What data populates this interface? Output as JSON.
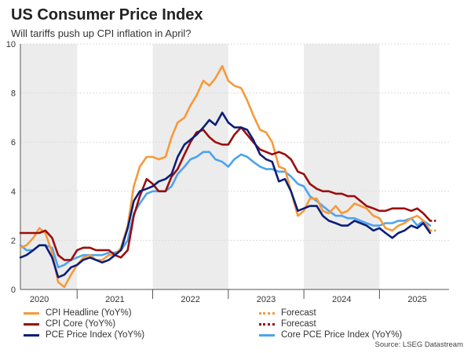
{
  "title": "US Consumer Price Index",
  "subtitle": "Will tariffs push up CPI inflation in April?",
  "source": "Source: LSEG Datastream",
  "colors": {
    "cpi_headline": "#f59a3b",
    "cpi_core": "#9b0d0d",
    "pce": "#0b1e78",
    "core_pce": "#4da3ee",
    "shade": "#ececec",
    "grid": "#dcdcdc",
    "axis": "#555555"
  },
  "legend": [
    {
      "label": "CPI Headline (YoY%)",
      "color": "#f59a3b",
      "style": "solid"
    },
    {
      "label": "Forecast",
      "color": "#f59a3b",
      "style": "dotted"
    },
    {
      "label": "CPI Core (YoY%)",
      "color": "#9b0d0d",
      "style": "solid"
    },
    {
      "label": "Forecast",
      "color": "#9b0d0d",
      "style": "dotted"
    },
    {
      "label": "PCE Price Index (YoY%)",
      "color": "#0b1e78",
      "style": "solid"
    },
    {
      "label": "Core PCE Price Index (YoY%)",
      "color": "#4da3ee",
      "style": "solid"
    }
  ],
  "chart_data": {
    "type": "line",
    "title": "US Consumer Price Index",
    "subtitle": "Will tariffs push up CPI inflation in April?",
    "xlabel": "",
    "ylabel": "",
    "ylim": [
      0,
      10
    ],
    "yticks": [
      0,
      2,
      4,
      6,
      8,
      10
    ],
    "x_range": [
      2019.75,
      2025.42
    ],
    "year_labels": [
      {
        "label": "2020",
        "x": 2020.0
      },
      {
        "label": "2021",
        "x": 2021.0
      },
      {
        "label": "2022",
        "x": 2022.0
      },
      {
        "label": "2023",
        "x": 2023.0
      },
      {
        "label": "2024",
        "x": 2024.0
      },
      {
        "label": "2025",
        "x": 2025.0
      }
    ],
    "year_dividers": [
      2020.5,
      2021.5,
      2022.5,
      2023.5,
      2024.5
    ],
    "shaded_periods": [
      [
        2019.75,
        2020.5
      ],
      [
        2021.5,
        2022.5
      ],
      [
        2023.5,
        2024.5
      ]
    ],
    "series": [
      {
        "name": "CPI Headline (YoY%)",
        "color": "#f59a3b",
        "x": [
          2019.75,
          2019.83,
          2019.92,
          2020.0,
          2020.08,
          2020.17,
          2020.25,
          2020.33,
          2020.42,
          2020.5,
          2020.58,
          2020.67,
          2020.75,
          2020.83,
          2020.92,
          2021.0,
          2021.08,
          2021.17,
          2021.25,
          2021.33,
          2021.42,
          2021.5,
          2021.58,
          2021.67,
          2021.75,
          2021.83,
          2021.92,
          2022.0,
          2022.08,
          2022.17,
          2022.25,
          2022.33,
          2022.42,
          2022.5,
          2022.58,
          2022.67,
          2022.75,
          2022.83,
          2022.92,
          2023.0,
          2023.08,
          2023.17,
          2023.25,
          2023.33,
          2023.42,
          2023.5,
          2023.58,
          2023.67,
          2023.75,
          2023.83,
          2023.92,
          2024.0,
          2024.08,
          2024.17,
          2024.25,
          2024.33,
          2024.42,
          2024.5,
          2024.58,
          2024.67,
          2024.75,
          2024.83,
          2024.92,
          2025.0,
          2025.08,
          2025.17
        ],
        "y": [
          1.7,
          1.8,
          2.1,
          2.5,
          2.3,
          1.5,
          0.3,
          0.1,
          0.6,
          1.0,
          1.3,
          1.4,
          1.2,
          1.2,
          1.4,
          1.4,
          1.7,
          2.6,
          4.2,
          5.0,
          5.4,
          5.4,
          5.3,
          5.4,
          6.2,
          6.8,
          7.0,
          7.5,
          7.9,
          8.5,
          8.3,
          8.6,
          9.1,
          8.5,
          8.3,
          8.2,
          7.7,
          7.1,
          6.5,
          6.4,
          6.0,
          5.0,
          4.9,
          4.0,
          3.0,
          3.2,
          3.7,
          3.7,
          3.2,
          3.1,
          3.4,
          3.1,
          3.2,
          3.5,
          3.4,
          3.3,
          3.0,
          2.9,
          2.5,
          2.4,
          2.6,
          2.7,
          2.9,
          3.0,
          2.8,
          2.4
        ]
      },
      {
        "name": "CPI Core (YoY%)",
        "color": "#9b0d0d",
        "x": [
          2019.75,
          2019.83,
          2019.92,
          2020.0,
          2020.08,
          2020.17,
          2020.25,
          2020.33,
          2020.42,
          2020.5,
          2020.58,
          2020.67,
          2020.75,
          2020.83,
          2020.92,
          2021.0,
          2021.08,
          2021.17,
          2021.25,
          2021.33,
          2021.42,
          2021.5,
          2021.58,
          2021.67,
          2021.75,
          2021.83,
          2021.92,
          2022.0,
          2022.08,
          2022.17,
          2022.25,
          2022.33,
          2022.42,
          2022.5,
          2022.58,
          2022.67,
          2022.75,
          2022.83,
          2022.92,
          2023.0,
          2023.08,
          2023.17,
          2023.25,
          2023.33,
          2023.42,
          2023.5,
          2023.58,
          2023.67,
          2023.75,
          2023.83,
          2023.92,
          2024.0,
          2024.08,
          2024.17,
          2024.25,
          2024.33,
          2024.42,
          2024.5,
          2024.58,
          2024.67,
          2024.75,
          2024.83,
          2024.92,
          2025.0,
          2025.08,
          2025.17
        ],
        "y": [
          2.3,
          2.3,
          2.3,
          2.3,
          2.4,
          2.1,
          1.4,
          1.2,
          1.2,
          1.6,
          1.7,
          1.7,
          1.6,
          1.6,
          1.6,
          1.4,
          1.3,
          1.6,
          3.0,
          3.8,
          4.5,
          4.3,
          4.0,
          4.0,
          4.6,
          4.9,
          5.5,
          6.0,
          6.4,
          6.5,
          6.2,
          6.0,
          5.9,
          5.9,
          6.3,
          6.6,
          6.3,
          6.0,
          5.7,
          5.6,
          5.5,
          5.6,
          5.5,
          5.3,
          4.8,
          4.7,
          4.3,
          4.1,
          4.0,
          4.0,
          3.9,
          3.9,
          3.8,
          3.8,
          3.6,
          3.4,
          3.3,
          3.2,
          3.2,
          3.3,
          3.3,
          3.3,
          3.2,
          3.3,
          3.1,
          2.8
        ]
      },
      {
        "name": "PCE Price Index (YoY%)",
        "color": "#0b1e78",
        "x": [
          2019.75,
          2019.83,
          2019.92,
          2020.0,
          2020.08,
          2020.17,
          2020.25,
          2020.33,
          2020.42,
          2020.5,
          2020.58,
          2020.67,
          2020.75,
          2020.83,
          2020.92,
          2021.0,
          2021.08,
          2021.17,
          2021.25,
          2021.33,
          2021.42,
          2021.5,
          2021.58,
          2021.67,
          2021.75,
          2021.83,
          2021.92,
          2022.0,
          2022.08,
          2022.17,
          2022.25,
          2022.33,
          2022.42,
          2022.5,
          2022.58,
          2022.67,
          2022.75,
          2022.83,
          2022.92,
          2023.0,
          2023.08,
          2023.17,
          2023.25,
          2023.33,
          2023.42,
          2023.5,
          2023.58,
          2023.67,
          2023.75,
          2023.83,
          2023.92,
          2024.0,
          2024.08,
          2024.17,
          2024.25,
          2024.33,
          2024.42,
          2024.5,
          2024.58,
          2024.67,
          2024.75,
          2024.83,
          2024.92,
          2025.0,
          2025.08,
          2025.17
        ],
        "y": [
          1.3,
          1.4,
          1.6,
          1.8,
          1.8,
          1.3,
          0.5,
          0.6,
          0.9,
          1.0,
          1.2,
          1.3,
          1.2,
          1.1,
          1.2,
          1.4,
          1.6,
          2.5,
          3.6,
          4.0,
          4.1,
          4.2,
          4.4,
          4.5,
          4.7,
          5.4,
          5.9,
          6.1,
          6.3,
          6.6,
          6.9,
          6.7,
          7.2,
          6.8,
          6.6,
          6.6,
          6.5,
          6.1,
          5.5,
          5.3,
          5.2,
          4.4,
          4.5,
          4.0,
          3.2,
          3.3,
          3.4,
          3.4,
          3.0,
          2.8,
          2.7,
          2.6,
          2.6,
          2.8,
          2.7,
          2.6,
          2.4,
          2.5,
          2.3,
          2.1,
          2.3,
          2.4,
          2.6,
          2.5,
          2.7,
          2.3
        ]
      },
      {
        "name": "Core PCE Price Index (YoY%)",
        "color": "#4da3ee",
        "x": [
          2019.75,
          2019.83,
          2019.92,
          2020.0,
          2020.08,
          2020.17,
          2020.25,
          2020.33,
          2020.42,
          2020.5,
          2020.58,
          2020.67,
          2020.75,
          2020.83,
          2020.92,
          2021.0,
          2021.08,
          2021.17,
          2021.25,
          2021.33,
          2021.42,
          2021.5,
          2021.58,
          2021.67,
          2021.75,
          2021.83,
          2021.92,
          2022.0,
          2022.08,
          2022.17,
          2022.25,
          2022.33,
          2022.42,
          2022.5,
          2022.58,
          2022.67,
          2022.75,
          2022.83,
          2022.92,
          2023.0,
          2023.08,
          2023.17,
          2023.25,
          2023.33,
          2023.42,
          2023.5,
          2023.58,
          2023.67,
          2023.75,
          2023.83,
          2023.92,
          2024.0,
          2024.08,
          2024.17,
          2024.25,
          2024.33,
          2024.42,
          2024.5,
          2024.58,
          2024.67,
          2024.75,
          2024.83,
          2024.92,
          2025.0,
          2025.08,
          2025.17
        ],
        "y": [
          1.8,
          1.6,
          1.6,
          1.8,
          1.8,
          1.7,
          0.9,
          1.0,
          1.2,
          1.3,
          1.4,
          1.4,
          1.4,
          1.4,
          1.5,
          1.5,
          1.6,
          2.0,
          3.1,
          3.5,
          3.9,
          4.0,
          4.0,
          4.0,
          4.2,
          4.7,
          5.0,
          5.3,
          5.4,
          5.6,
          5.6,
          5.3,
          5.2,
          5.0,
          5.3,
          5.5,
          5.4,
          5.2,
          5.0,
          4.9,
          4.9,
          4.8,
          4.8,
          4.6,
          4.3,
          4.2,
          3.8,
          3.6,
          3.4,
          3.2,
          3.0,
          3.0,
          2.9,
          2.9,
          2.8,
          2.7,
          2.6,
          2.6,
          2.7,
          2.7,
          2.8,
          2.8,
          2.9,
          2.6,
          2.8,
          2.6
        ]
      }
    ],
    "forecasts": [
      {
        "name": "Forecast (CPI Headline)",
        "color": "#f59a3b",
        "x": [
          2025.17,
          2025.25
        ],
        "y": [
          2.4,
          2.4
        ]
      },
      {
        "name": "Forecast (CPI Core)",
        "color": "#9b0d0d",
        "x": [
          2025.17,
          2025.25
        ],
        "y": [
          2.8,
          2.8
        ]
      }
    ]
  }
}
